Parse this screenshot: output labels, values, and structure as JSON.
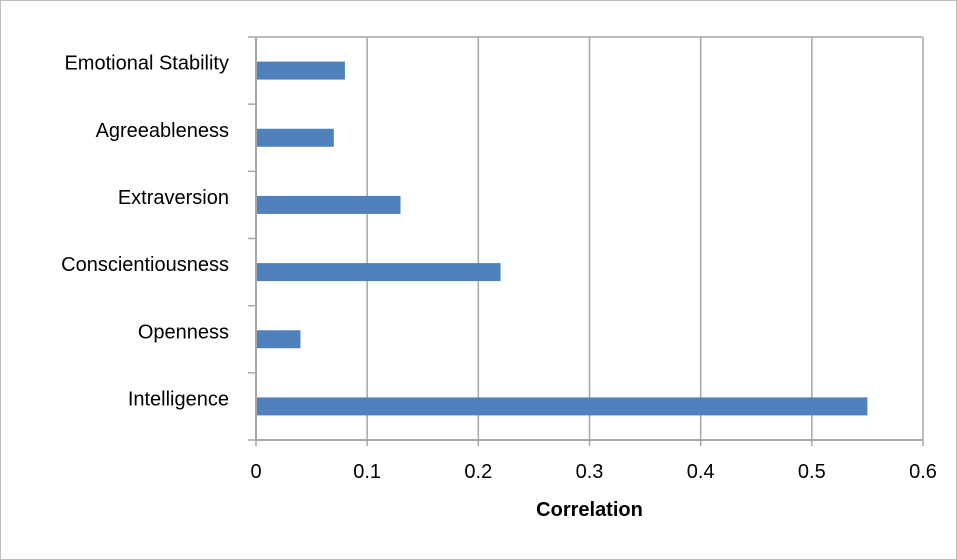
{
  "chart_data": {
    "type": "bar",
    "orientation": "horizontal",
    "categories": [
      "Intelligence",
      "Openness",
      "Conscientiousness",
      "Extraversion",
      "Agreeableness",
      "Emotional Stability"
    ],
    "values": [
      0.55,
      0.04,
      0.22,
      0.13,
      0.07,
      0.08
    ],
    "xlabel": "Correlation",
    "ylabel": "",
    "xlim": [
      0,
      0.6
    ],
    "xticks": [
      "0",
      "0.1",
      "0.2",
      "0.3",
      "0.4",
      "0.5",
      "0.6"
    ],
    "grid": "vertical",
    "legend": "none",
    "colors": {
      "bar": "#4f81bd",
      "grid": "#a6a6a6",
      "axis": "#a6a6a6",
      "frame": "#bdbdbd"
    }
  }
}
